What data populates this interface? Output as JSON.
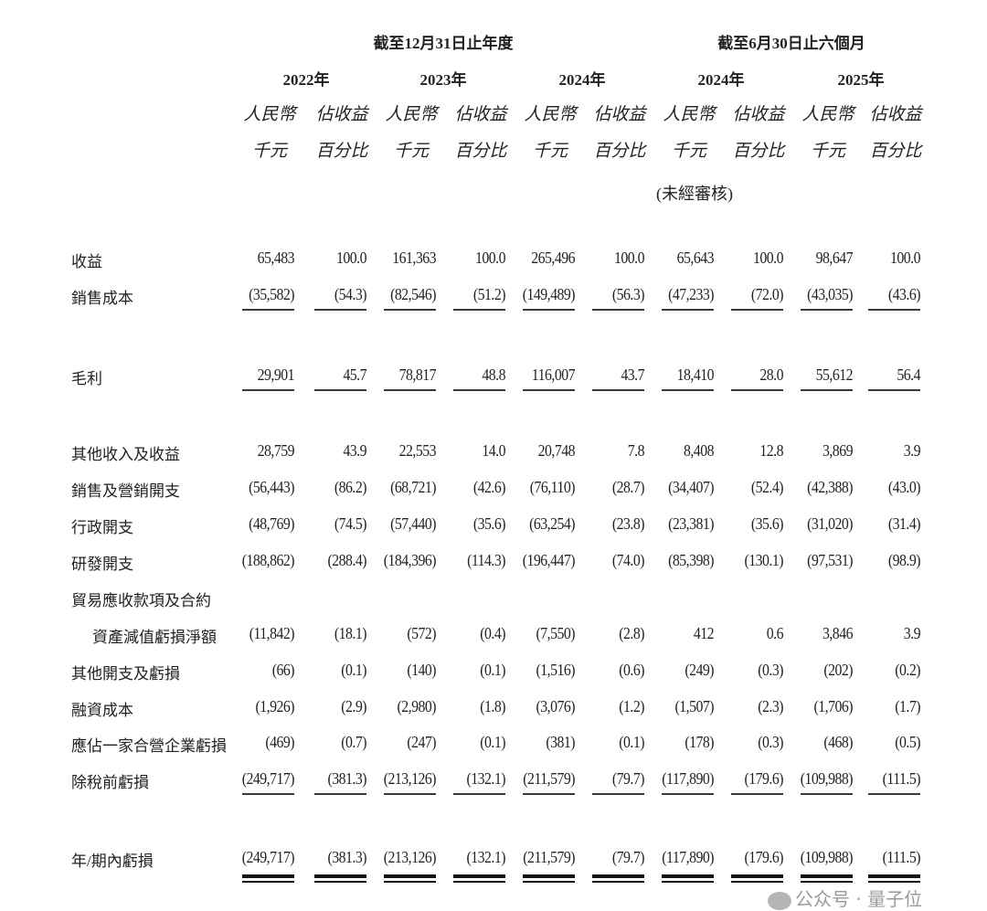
{
  "header": {
    "annual_period": "截至12月31日止年度",
    "interim_period": "截至6月30日止六個月",
    "years": [
      "2022年",
      "2023年",
      "2024年",
      "2024年",
      "2025年"
    ],
    "col_top": [
      "人民幣",
      "佔收益",
      "人民幣",
      "佔收益",
      "人民幣",
      "佔收益",
      "人民幣",
      "佔收益",
      "人民幣",
      "佔收益"
    ],
    "col_bottom": [
      "千元",
      "百分比",
      "千元",
      "百分比",
      "千元",
      "百分比",
      "千元",
      "百分比",
      "千元",
      "百分比"
    ],
    "unaudited": "(未經審核)"
  },
  "rows": [
    {
      "label": "收益",
      "values": [
        "65,483",
        "100.0",
        "161,363",
        "100.0",
        "265,496",
        "100.0",
        "65,643",
        "100.0",
        "98,647",
        "100.0"
      ]
    },
    {
      "label": "銷售成本",
      "values": [
        "(35,582)",
        "(54.3)",
        "(82,546)",
        "(51.2)",
        "(149,489)",
        "(56.3)",
        "(47,233)",
        "(72.0)",
        "(43,035)",
        "(43.6)"
      ]
    },
    {
      "label": "毛利",
      "values": [
        "29,901",
        "45.7",
        "78,817",
        "48.8",
        "116,007",
        "43.7",
        "18,410",
        "28.0",
        "55,612",
        "56.4"
      ]
    },
    {
      "label": "其他收入及收益",
      "values": [
        "28,759",
        "43.9",
        "22,553",
        "14.0",
        "20,748",
        "7.8",
        "8,408",
        "12.8",
        "3,869",
        "3.9"
      ]
    },
    {
      "label": "銷售及營銷開支",
      "values": [
        "(56,443)",
        "(86.2)",
        "(68,721)",
        "(42.6)",
        "(76,110)",
        "(28.7)",
        "(34,407)",
        "(52.4)",
        "(42,388)",
        "(43.0)"
      ]
    },
    {
      "label": "行政開支",
      "values": [
        "(48,769)",
        "(74.5)",
        "(57,440)",
        "(35.6)",
        "(63,254)",
        "(23.8)",
        "(23,381)",
        "(35.6)",
        "(31,020)",
        "(31.4)"
      ]
    },
    {
      "label": "研發開支",
      "values": [
        "(188,862)",
        "(288.4)",
        "(184,396)",
        "(114.3)",
        "(196,447)",
        "(74.0)",
        "(85,398)",
        "(130.1)",
        "(97,531)",
        "(98.9)"
      ]
    },
    {
      "label": "貿易應收款項及合約",
      "values": []
    },
    {
      "label": "資產減值虧損淨額",
      "values": [
        "(11,842)",
        "(18.1)",
        "(572)",
        "(0.4)",
        "(7,550)",
        "(2.8)",
        "412",
        "0.6",
        "3,846",
        "3.9"
      ]
    },
    {
      "label": "其他開支及虧損",
      "values": [
        "(66)",
        "(0.1)",
        "(140)",
        "(0.1)",
        "(1,516)",
        "(0.6)",
        "(249)",
        "(0.3)",
        "(202)",
        "(0.2)"
      ]
    },
    {
      "label": "融資成本",
      "values": [
        "(1,926)",
        "(2.9)",
        "(2,980)",
        "(1.8)",
        "(3,076)",
        "(1.2)",
        "(1,507)",
        "(2.3)",
        "(1,706)",
        "(1.7)"
      ]
    },
    {
      "label": "應佔一家合營企業虧損",
      "values": [
        "(469)",
        "(0.7)",
        "(247)",
        "(0.1)",
        "(381)",
        "(0.1)",
        "(178)",
        "(0.3)",
        "(468)",
        "(0.5)"
      ]
    },
    {
      "label": "除稅前虧損",
      "values": [
        "(249,717)",
        "(381.3)",
        "(213,126)",
        "(132.1)",
        "(211,579)",
        "(79.7)",
        "(117,890)",
        "(179.6)",
        "(109,988)",
        "(111.5)"
      ]
    },
    {
      "label": "年/期內虧損",
      "values": [
        "(249,717)",
        "(381.3)",
        "(213,126)",
        "(132.1)",
        "(211,579)",
        "(79.7)",
        "(117,890)",
        "(179.6)",
        "(109,988)",
        "(111.5)"
      ]
    }
  ],
  "watermark": "公众号 · 量子位"
}
